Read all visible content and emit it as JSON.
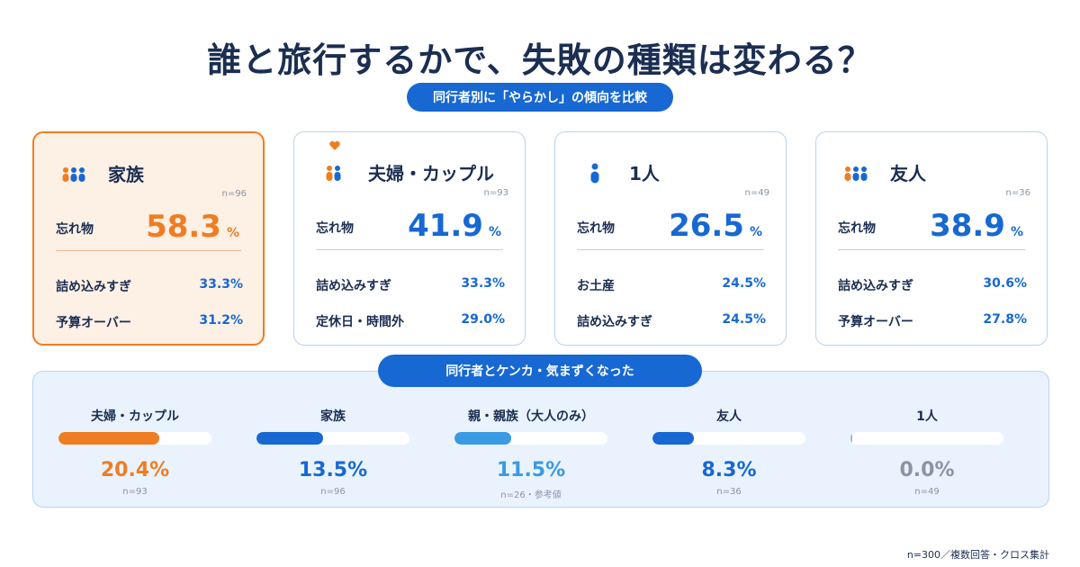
{
  "title": "誰と旅行するかで、失敗の種類は変わる？",
  "subtitle": "同行者別に「やらかし」の傾向を比較",
  "cards": [
    {
      "name": "家族",
      "n": "n=96",
      "icon": "family-icon",
      "highlight": true,
      "main_label": "忘れ物",
      "main_value": "58.3",
      "unit": "%",
      "rows": [
        {
          "label": "詰め込みすぎ",
          "value": "33.3%"
        },
        {
          "label": "予算オーバー",
          "value": "31.2%"
        }
      ]
    },
    {
      "name": "夫婦・カップル",
      "n": "n=93",
      "icon": "couple-icon",
      "heart": "heart-icon",
      "main_label": "忘れ物",
      "main_value": "41.9",
      "unit": "%",
      "rows": [
        {
          "label": "詰め込みすぎ",
          "value": "33.3%"
        },
        {
          "label": "定休日・時間外",
          "value": "29.0%"
        }
      ]
    },
    {
      "name": "1人",
      "n": "n=49",
      "icon": "person-icon",
      "main_label": "忘れ物",
      "main_value": "26.5",
      "unit": "%",
      "rows": [
        {
          "label": "お土産",
          "value": "24.5%"
        },
        {
          "label": "詰め込みすぎ",
          "value": "24.5%"
        }
      ]
    },
    {
      "name": "友人",
      "n": "n=36",
      "icon": "friends-icon",
      "main_label": "忘れ物",
      "main_value": "38.9",
      "unit": "%",
      "rows": [
        {
          "label": "詰め込みすぎ",
          "value": "30.6%"
        },
        {
          "label": "予算オーバー",
          "value": "27.8%"
        }
      ]
    }
  ],
  "conflict": {
    "title": "同行者とケンカ・気まずくなった"
  },
  "colors": {
    "orange": "#ef7d22",
    "blue": "#1768d2",
    "light_blue": "#3a9ae3",
    "gray": "#8a94a6"
  },
  "chart_data": {
    "type": "bar",
    "title": "同行者とケンカ・気まずくなった",
    "categories": [
      "夫婦・カップル",
      "家族",
      "親・親族（大人のみ）",
      "友人",
      "1人"
    ],
    "values": [
      20.4,
      13.5,
      11.5,
      8.3,
      0.0
    ],
    "value_labels": [
      "20.4%",
      "13.5%",
      "11.5%",
      "8.3%",
      "0.0%"
    ],
    "n_labels": [
      "n=93",
      "n=96",
      "n=26・参考値",
      "n=36",
      "n=49"
    ],
    "bar_colors": [
      "#ef7d22",
      "#1768d2",
      "#3a9ae3",
      "#1768d2",
      "#aab4c2"
    ],
    "value_colors": [
      "#ef7d22",
      "#1768d2",
      "#3a9ae3",
      "#1768d2",
      "#8a94a6"
    ],
    "xlim": [
      0,
      31
    ]
  },
  "footnote": "n=300／複数回答・クロス集計"
}
